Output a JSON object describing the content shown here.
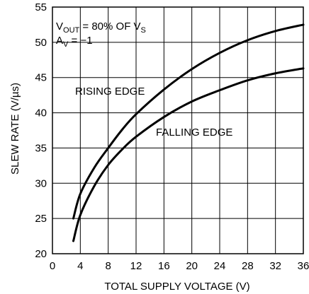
{
  "chart_data": {
    "type": "line",
    "title": "",
    "xlabel": "TOTAL SUPPLY VOLTAGE (V)",
    "ylabel": "SLEW RATE (V/µs)",
    "xlim": [
      0,
      36
    ],
    "ylim": [
      20,
      55
    ],
    "x_ticks": [
      0,
      4,
      8,
      12,
      16,
      20,
      24,
      28,
      32,
      36
    ],
    "y_ticks": [
      20,
      25,
      30,
      35,
      40,
      45,
      50,
      55
    ],
    "grid": true,
    "annotations": {
      "condition_line1": {
        "main": "V",
        "sub": "OUT",
        "rest": " = 80% OF V",
        "sub2": "S"
      },
      "condition_line2": {
        "main": "A",
        "sub": "V",
        "rest": " = −1"
      }
    },
    "series": [
      {
        "name": "RISING EDGE",
        "x": [
          3,
          4,
          6,
          8,
          10,
          12,
          16,
          20,
          24,
          28,
          32,
          36
        ],
        "y": [
          25,
          28.5,
          32.2,
          35,
          37.6,
          39.8,
          43.3,
          46.2,
          48.5,
          50.3,
          51.6,
          52.5
        ]
      },
      {
        "name": "FALLING EDGE",
        "x": [
          3,
          4,
          6,
          8,
          10,
          12,
          16,
          20,
          24,
          28,
          32,
          36
        ],
        "y": [
          21.8,
          25.5,
          29.6,
          32.6,
          34.8,
          36.6,
          39.4,
          41.6,
          43.2,
          44.6,
          45.6,
          46.3
        ]
      }
    ]
  }
}
